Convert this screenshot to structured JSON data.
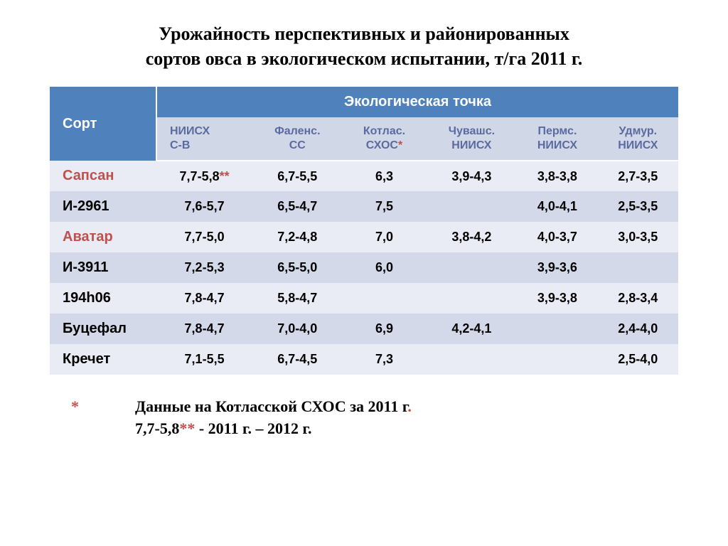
{
  "title_line1": "Урожайность перспективных и районированных",
  "title_line2": "сортов овса в экологическом испытании, т/га  2011 г.",
  "header": {
    "sort": "Сорт",
    "group": "Экологическая точка"
  },
  "columns": [
    {
      "l1": "НИИСХ",
      "l2": "С-В"
    },
    {
      "l1": "Фаленс.",
      "l2": "СС"
    },
    {
      "l1": "Котлас.",
      "l2": "СХОС",
      "star": "*"
    },
    {
      "l1": "Чувашс.",
      "l2": "НИИСХ"
    },
    {
      "l1": "Пермс.",
      "l2": "НИИСХ"
    },
    {
      "l1": "Удмур.",
      "l2": "НИИСХ"
    }
  ],
  "rows": [
    {
      "label": "Сапсан",
      "red": true,
      "cells": [
        "7,7-5,8",
        "6,7-5,5",
        "6,3",
        "3,9-4,3",
        "3,8-3,8",
        "2,7-3,5"
      ],
      "star_after_first": "**"
    },
    {
      "label": "И-2961",
      "red": false,
      "cells": [
        "7,6-5,7",
        "6,5-4,7",
        "7,5",
        "",
        "4,0-4,1",
        "2,5-3,5"
      ]
    },
    {
      "label": "Аватар",
      "red": true,
      "cells": [
        "7,7-5,0",
        "7,2-4,8",
        "7,0",
        "3,8-4,2",
        "4,0-3,7",
        "3,0-3,5"
      ]
    },
    {
      "label": "И-3911",
      "red": false,
      "cells": [
        "7,2-5,3",
        "6,5-5,0",
        "6,0",
        "",
        "3,9-3,6",
        ""
      ]
    },
    {
      "label": "194h06",
      "red": false,
      "cells": [
        "7,8-4,7",
        "5,8-4,7",
        "",
        "",
        "3,9-3,8",
        "2,8-3,4"
      ]
    },
    {
      "label": "Буцефал",
      "red": false,
      "cells": [
        "7,8-4,7",
        "7,0-4,0",
        "6,9",
        "4,2-4,1",
        "",
        "2,4-4,0"
      ]
    },
    {
      "label": "Кречет",
      "red": false,
      "cells": [
        "7,1-5,5",
        "6,7-4,5",
        "7,3",
        "",
        "",
        "2,5-4,0"
      ]
    }
  ],
  "footnote": {
    "star": "*",
    "line1": "Данные на Котласской СХОС  за 2011 г",
    "line1_dot": ".",
    "line2a": "7,7-5,8",
    "line2star": "**",
    "line2b": " - 2011 г. – 2012 г."
  },
  "colors": {
    "header_bg": "#4f81bd",
    "sub_bg": "#d0d8e8",
    "sub_text": "#5b6aa0",
    "band_a": "#e9ecf4",
    "band_b": "#d3d9e9",
    "red": "#c0504d"
  }
}
